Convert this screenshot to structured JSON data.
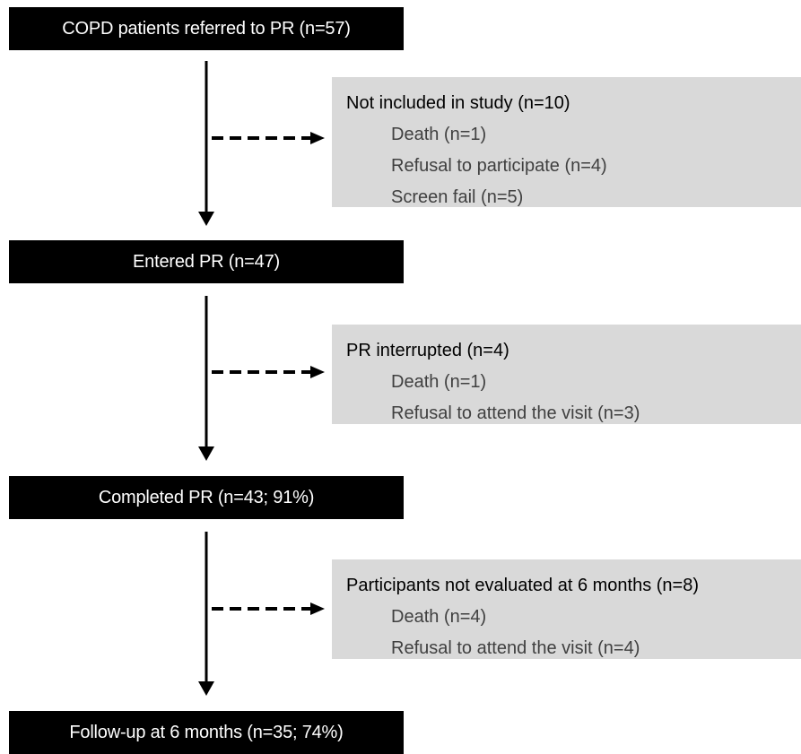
{
  "steps": [
    {
      "label": "COPD patients referred to PR (n=57)"
    },
    {
      "label": "Entered PR (n=47)"
    },
    {
      "label": "Completed PR (n=43; 91%)"
    },
    {
      "label": "Follow-up at 6 months (n=35; 74%)"
    }
  ],
  "exclusions": [
    {
      "title": "Not included in study (n=10)",
      "reasons": [
        "Death (n=1)",
        "Refusal to participate  (n=4)",
        "Screen fail (n=5)"
      ]
    },
    {
      "title": "PR interrupted (n=4)",
      "reasons": [
        "Death (n=1)",
        "Refusal to attend the visit (n=3)"
      ]
    },
    {
      "title": "Participants not evaluated at 6 months (n=8)",
      "reasons": [
        "Death (n=4)",
        "Refusal to attend the visit (n=4)"
      ]
    }
  ],
  "colors": {
    "step_fill": "#000000",
    "step_text": "#ffffff",
    "exclusion_fill": "#d9d9d9",
    "reason_text": "#404040"
  }
}
